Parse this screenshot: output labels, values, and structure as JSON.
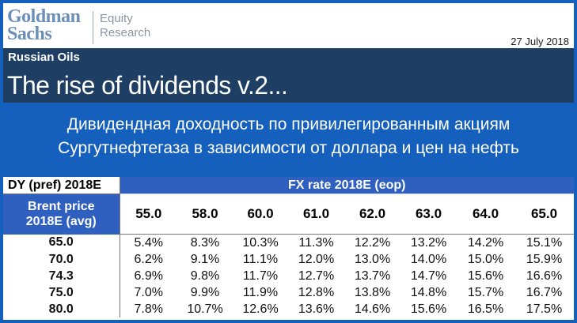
{
  "header": {
    "logo": [
      "Goldman",
      "Sachs"
    ],
    "division": [
      "Equity",
      "Research"
    ],
    "date": "27 July 2018",
    "sector": "Russian Oils",
    "title": "The rise of dividends v.2..."
  },
  "subtitle": [
    "Дивидендная доходность по привилегированным акциям",
    "Сургутнефтегаза в зависимости от доллара и цен на нефть"
  ],
  "table": {
    "corner_label": "DY (pref) 2018E",
    "fx_title": "FX rate 2018E (eop)",
    "row_header_label": [
      "Brent price",
      "2018E (avg)"
    ],
    "fx_columns": [
      "55.0",
      "58.0",
      "60.0",
      "61.0",
      "62.0",
      "63.0",
      "64.0",
      "65.0"
    ],
    "rows": [
      {
        "brent": "65.0",
        "values": [
          "5.4%",
          "8.3%",
          "10.3%",
          "11.3%",
          "12.2%",
          "13.2%",
          "14.2%",
          "15.1%"
        ]
      },
      {
        "brent": "70.0",
        "values": [
          "6.2%",
          "9.1%",
          "11.1%",
          "12.0%",
          "13.0%",
          "14.0%",
          "15.0%",
          "15.9%"
        ]
      },
      {
        "brent": "74.3",
        "values": [
          "6.9%",
          "9.8%",
          "11.7%",
          "12.7%",
          "13.7%",
          "14.7%",
          "15.6%",
          "16.6%"
        ]
      },
      {
        "brent": "75.0",
        "values": [
          "7.0%",
          "9.9%",
          "11.9%",
          "12.8%",
          "13.8%",
          "14.8%",
          "15.7%",
          "16.7%"
        ]
      },
      {
        "brent": "80.0",
        "values": [
          "7.8%",
          "10.7%",
          "12.6%",
          "13.6%",
          "14.6%",
          "15.6%",
          "16.5%",
          "17.5%"
        ]
      }
    ]
  },
  "colors": {
    "background": "#1560bd",
    "banner": "#1f3e63",
    "table_header": "#2f5fbf"
  }
}
